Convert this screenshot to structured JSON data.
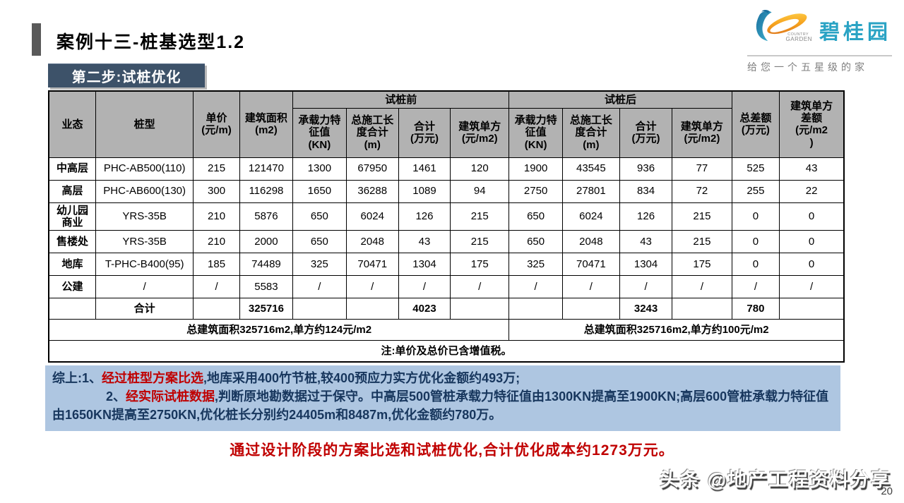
{
  "slide": {
    "title": "案例十三-桩基选型1.2",
    "step_badge": "第二步:试桩优化",
    "page_number": "20",
    "watermark": "头条 @地产工程资料分享"
  },
  "logo": {
    "brand_name": "碧桂园",
    "subtext_line1": "COUNTRY",
    "subtext_line2": "GARDEN",
    "tagline": "给您一个五星级的家"
  },
  "table": {
    "headers": {
      "yetai": "业态",
      "zhuangxing": "桩型",
      "danjia": "单价\n(元/m)",
      "mianji": "建筑面积\n(m2)",
      "group_before": "试桩前",
      "group_after": "试桩后",
      "sub_bearing": "承载力特\n征值\n(KN)",
      "sub_length": "总施工长\n度合计\n(m)",
      "sub_total": "合计\n(万元)",
      "sub_unit": "建筑单方\n(元/m2)",
      "diff_total": "总差额\n(万元)",
      "diff_unit": "建筑单方\n差额\n(元/m2\n)"
    },
    "rows": [
      [
        "中高层",
        "PHC-AB500(110)",
        "215",
        "121470",
        "1300",
        "67950",
        "1461",
        "120",
        "1900",
        "43545",
        "936",
        "77",
        "525",
        "43"
      ],
      [
        "高层",
        "PHC-AB600(130)",
        "300",
        "116298",
        "1650",
        "36288",
        "1089",
        "94",
        "2750",
        "27801",
        "834",
        "72",
        "255",
        "22"
      ],
      [
        "幼儿园\n商业",
        "YRS-35B",
        "210",
        "5876",
        "650",
        "6024",
        "126",
        "215",
        "650",
        "6024",
        "126",
        "215",
        "0",
        "0"
      ],
      [
        "售楼处",
        "YRS-35B",
        "210",
        "2000",
        "650",
        "2048",
        "43",
        "215",
        "650",
        "2048",
        "43",
        "215",
        "0",
        "0"
      ],
      [
        "地库",
        "T-PHC-B400(95)",
        "185",
        "74489",
        "325",
        "70471",
        "1304",
        "175",
        "325",
        "70471",
        "1304",
        "175",
        "0",
        "0"
      ],
      [
        "公建",
        "/",
        "/",
        "5583",
        "/",
        "/",
        "/",
        "/",
        "/",
        "/",
        "/",
        "/",
        "/",
        "/"
      ],
      [
        "",
        "合计",
        "",
        "325716",
        "",
        "",
        "4023",
        "",
        "",
        "",
        "3243",
        "",
        "780",
        ""
      ]
    ],
    "footer": {
      "before_summary": "总建筑面积325716m2,单方约124元/m2",
      "after_summary": "总建筑面积325716m2,单方约100元/m2",
      "note": "注:单价及总价已含增值税。"
    }
  },
  "summary": {
    "prefix": "综上:",
    "item1_pre": "1、",
    "item1_red": "经过桩型方案比选",
    "item1_rest": ",地库采用400竹节桩,较400预应力实方优化金额约493万;",
    "item2_pre": "2、",
    "item2_red": "经实际试桩数据",
    "item2_rest": ",判断原地勘数据过于保守。中高层500管桩承载力特征值由1300KN提高至1900KN;高层600管桩承载力特征值由1650KN提高至2750KN,优化桩长分别约24405m和8487m,优化金额约780万。"
  },
  "conclusion": "通过设计阶段的方案比选和试桩优化,合计优化成本约1273万元。",
  "colors": {
    "accent_red": "#c00000",
    "badge_bg": "#3d5269",
    "table_header_gray": "#b2b2b2",
    "summary_bg": "#aec6e1",
    "summary_text": "#17365d",
    "brand_teal": "#2aa3c4"
  }
}
